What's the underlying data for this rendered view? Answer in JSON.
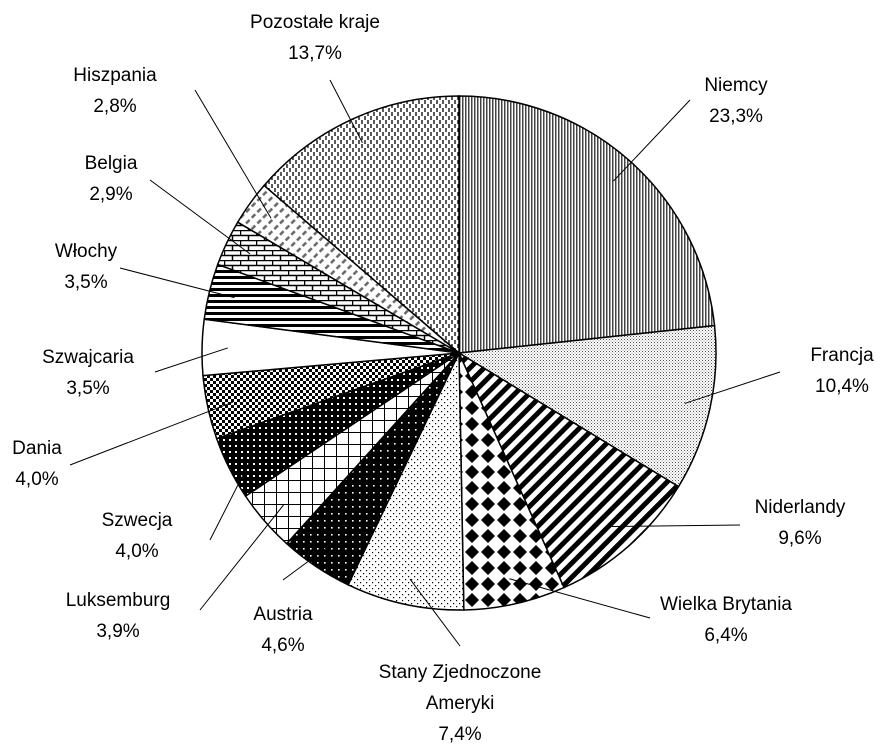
{
  "chart_data": {
    "type": "pie",
    "categories": [
      "Niemcy",
      "Francja",
      "Niderlandy",
      "Wielka Brytania",
      "Stany Zjednoczone Ameryki",
      "Austria",
      "Luksemburg",
      "Szwecja",
      "Dania",
      "Szwajcaria",
      "Włochy",
      "Belgia",
      "Hiszpania",
      "Pozostałe kraje"
    ],
    "values": [
      23.3,
      10.4,
      9.6,
      6.4,
      7.4,
      4.6,
      3.9,
      4.0,
      4.0,
      3.5,
      3.5,
      2.9,
      2.8,
      13.7
    ],
    "value_labels": [
      "23,3%",
      "10,4%",
      "9,6%",
      "6,4%",
      "7,4%",
      "4,6%",
      "3,9%",
      "4,0%",
      "4,0%",
      "3,5%",
      "3,5%",
      "2,9%",
      "2,8%",
      "13,7%"
    ]
  }
}
